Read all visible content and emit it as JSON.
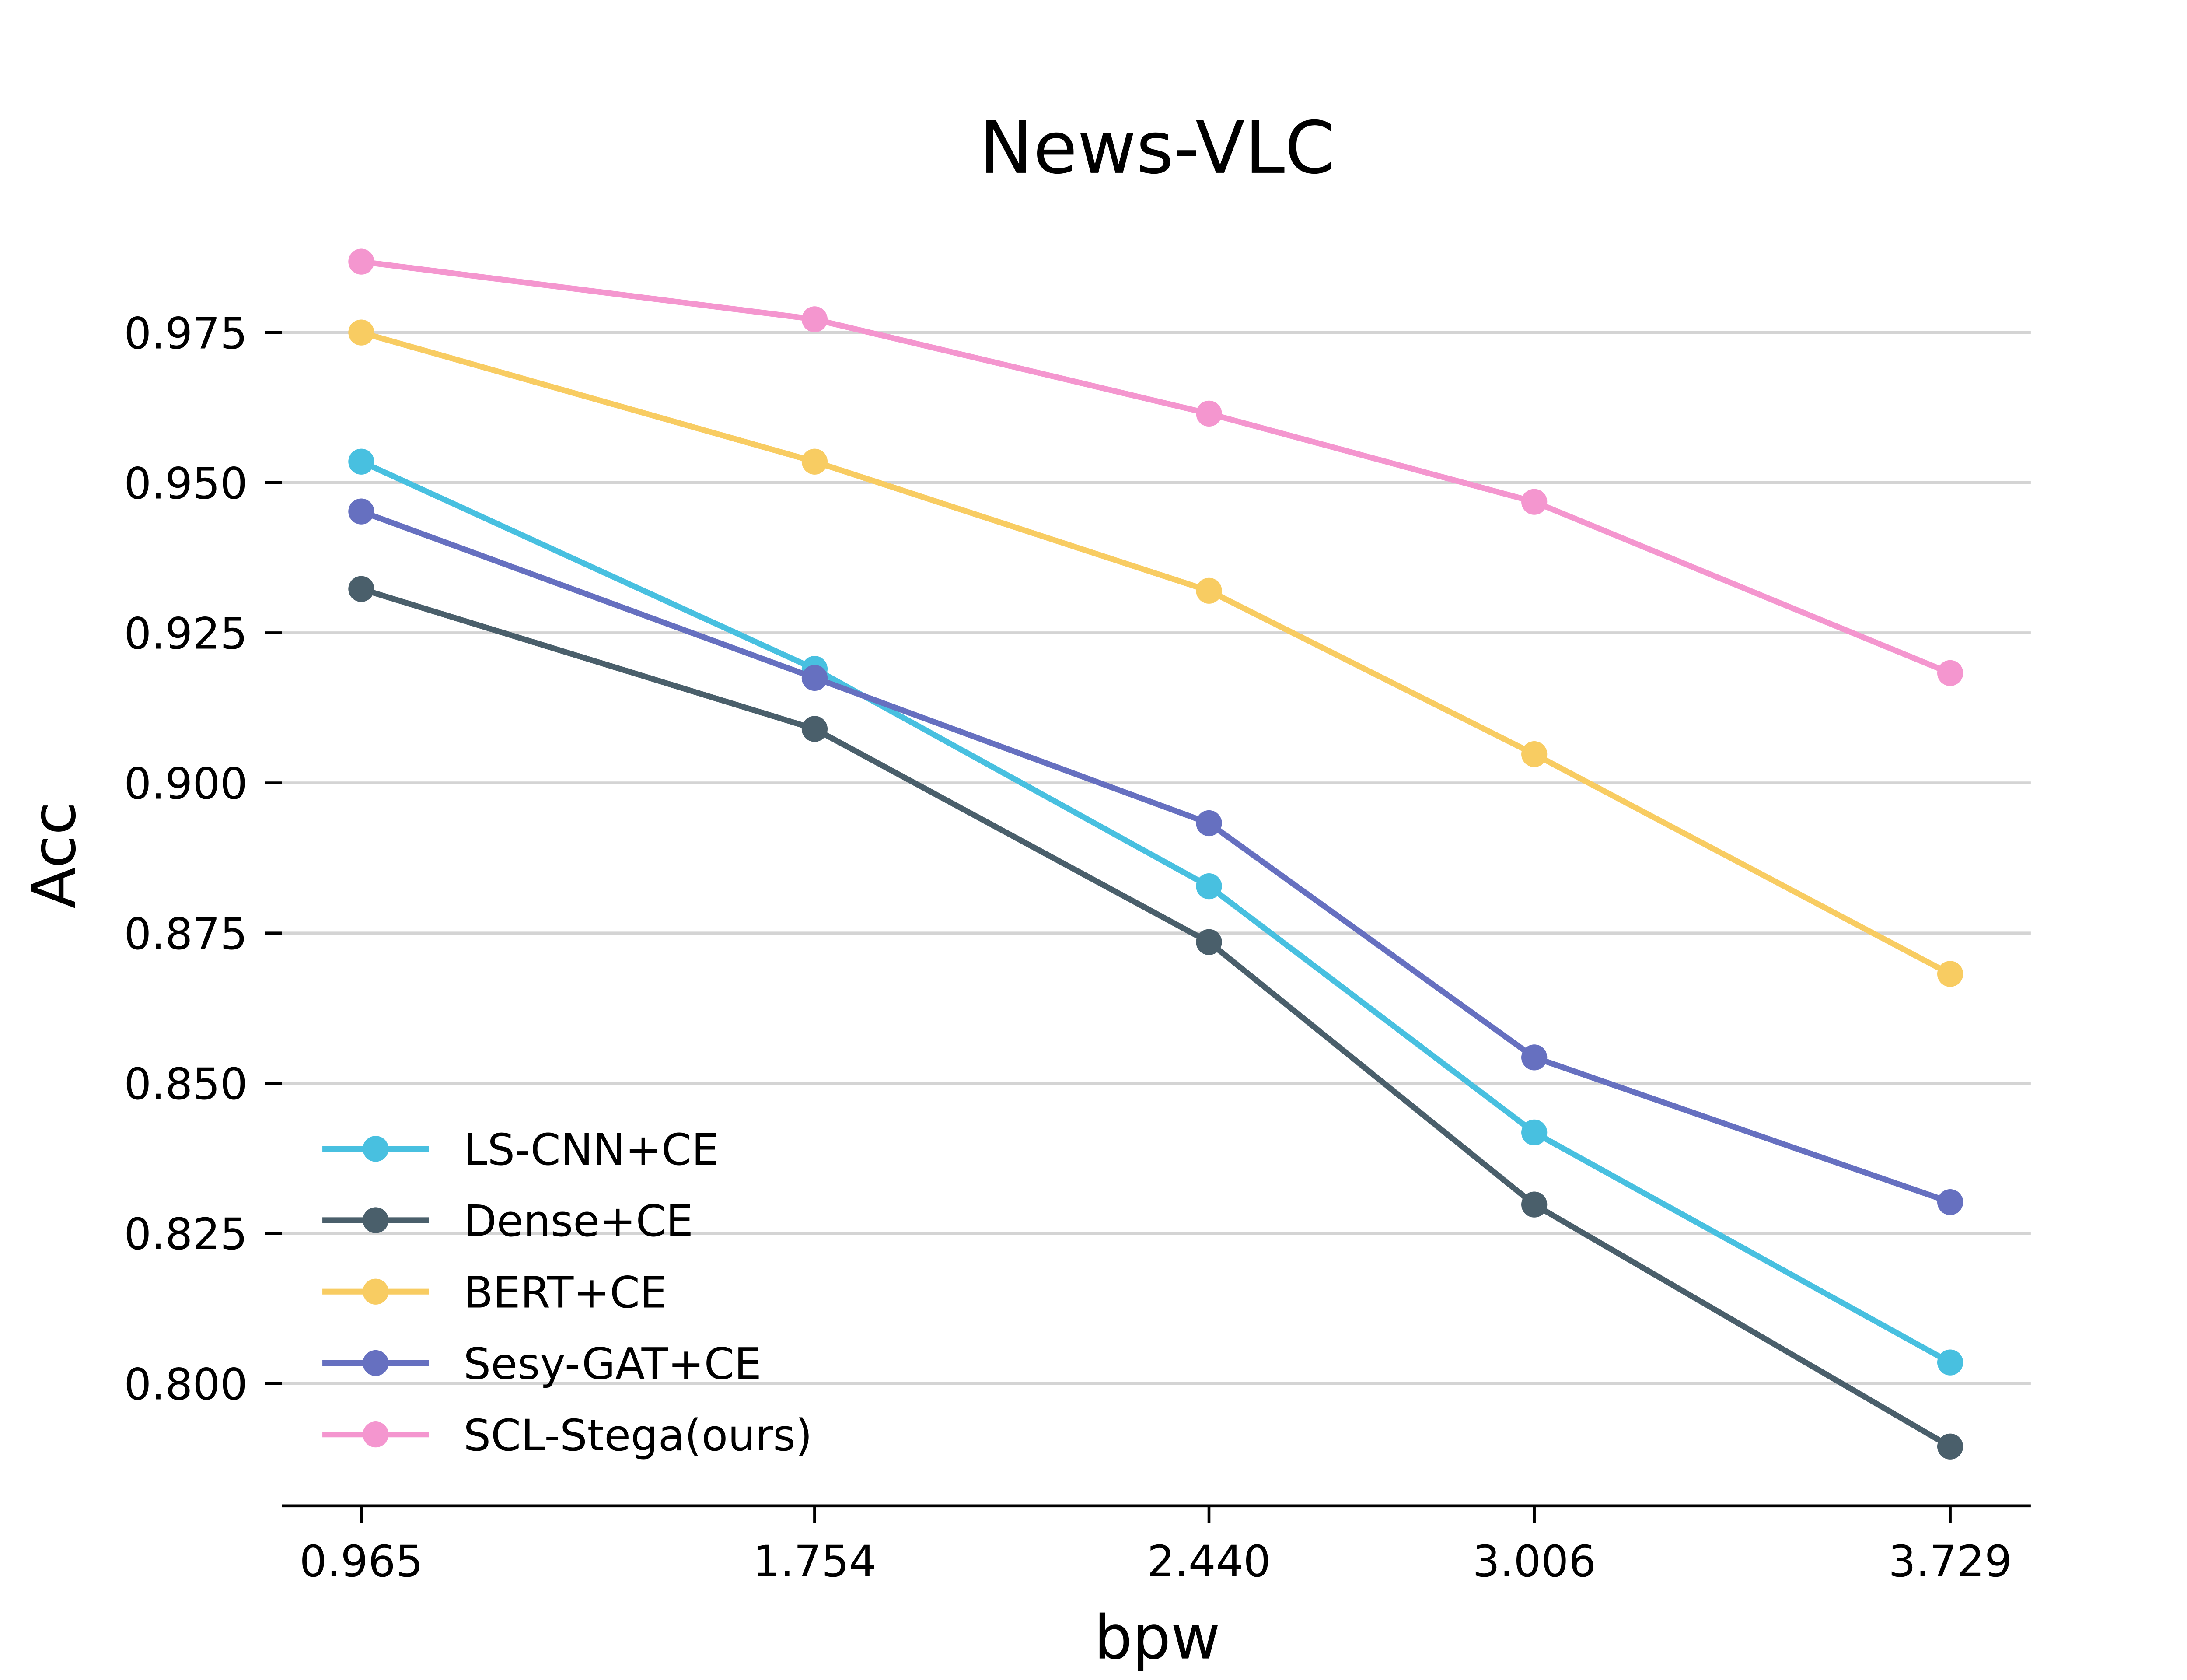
{
  "chart_data": {
    "type": "line",
    "title": "News-VLC",
    "xlabel": "bpw",
    "ylabel": "Acc",
    "categories": [
      "0.965",
      "1.754",
      "2.440",
      "3.006",
      "3.729"
    ],
    "yticks": [
      "0.800",
      "0.825",
      "0.850",
      "0.875",
      "0.900",
      "0.925",
      "0.950",
      "0.975"
    ],
    "ylim": [
      0.78,
      0.99
    ],
    "grid": "horizontal",
    "legend_position": "lower-left",
    "series": [
      {
        "name": "LS-CNN+CE",
        "color": "#48c0e0",
        "values": [
          0.9535,
          0.919,
          0.8828,
          0.8418,
          0.8035
        ]
      },
      {
        "name": "Dense+CE",
        "color": "#4a5f6b",
        "values": [
          0.9323,
          0.909,
          0.8735,
          0.8298,
          0.7895
        ]
      },
      {
        "name": "BERT+CE",
        "color": "#f8cc62",
        "values": [
          0.975,
          0.9535,
          0.932,
          0.9048,
          0.8682
        ]
      },
      {
        "name": "Sesy-GAT+CE",
        "color": "#6670c0",
        "values": [
          0.9452,
          0.9175,
          0.8933,
          0.8543,
          0.8302
        ]
      },
      {
        "name": "SCL-Stega(ours)",
        "color": "#f496cf",
        "values": [
          0.9868,
          0.9772,
          0.9615,
          0.9468,
          0.9183
        ]
      }
    ]
  }
}
